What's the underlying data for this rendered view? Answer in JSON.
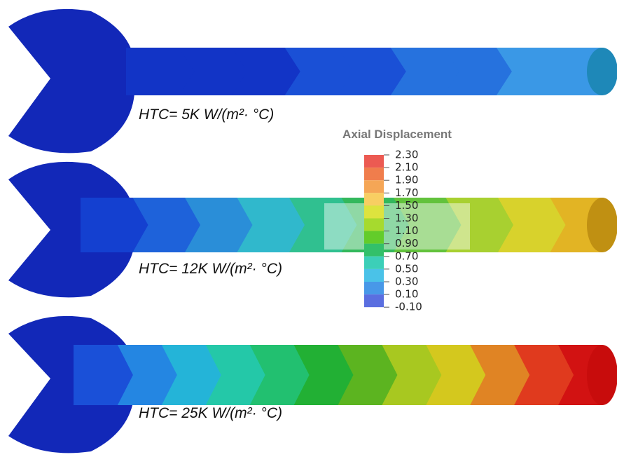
{
  "panels": [
    {
      "label": "HTC= 5K W/(m²· °C)"
    },
    {
      "label": "HTC= 12K W/(m²· °C)"
    },
    {
      "label": "HTC= 25K W/(m²· °C)"
    }
  ],
  "legend": {
    "title": "Axial Displacement",
    "ticks": [
      "2.30",
      "2.10",
      "1.90",
      "1.70",
      "1.50",
      "1.30",
      "1.10",
      "0.90",
      "0.70",
      "0.50",
      "0.30",
      "0.10",
      "-0.10"
    ],
    "colors": [
      "#ec5a52",
      "#f07d4c",
      "#f5a656",
      "#f8ce62",
      "#dde33e",
      "#a6da2e",
      "#63cc2a",
      "#33c06a",
      "#3ccfb8",
      "#4ac2e8",
      "#4898e8",
      "#5a6ee0"
    ]
  }
}
